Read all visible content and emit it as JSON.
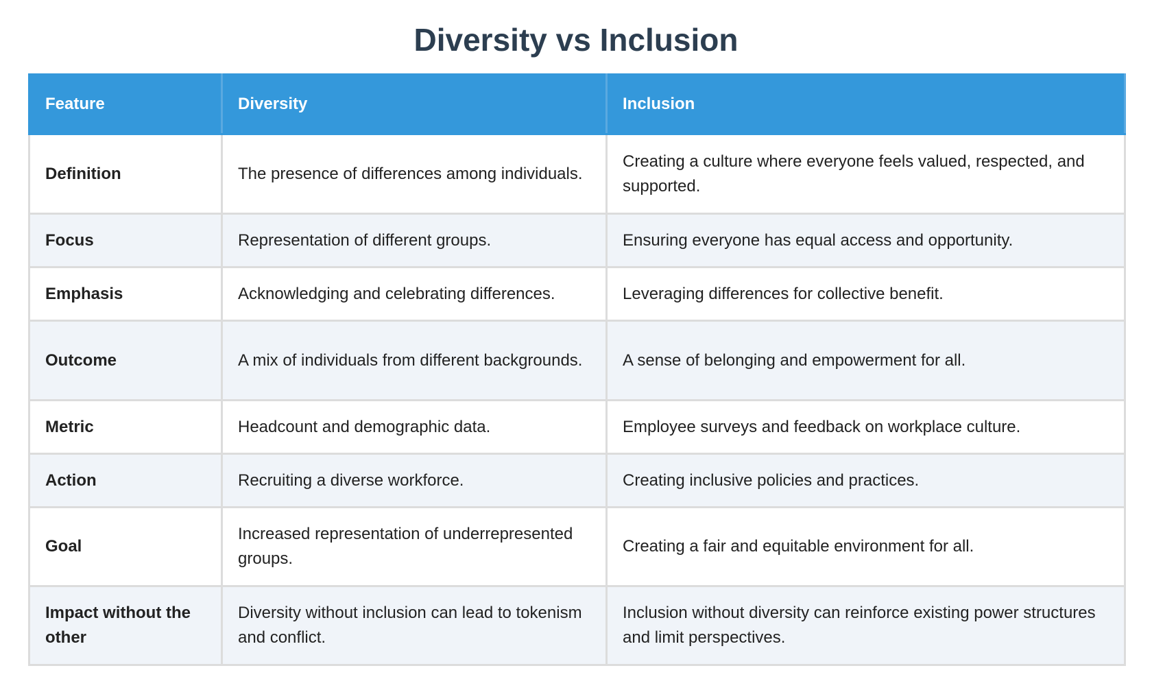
{
  "title": "Diversity vs Inclusion",
  "table": {
    "headers": [
      "Feature",
      "Diversity",
      "Inclusion"
    ],
    "rows": [
      [
        "Definition",
        "The presence of differences among individuals.",
        "Creating a culture where everyone feels valued, respected, and supported."
      ],
      [
        "Focus",
        "Representation of different groups.",
        "Ensuring everyone has equal access and opportunity."
      ],
      [
        "Emphasis",
        "Acknowledging and celebrating differences.",
        "Leveraging differences for collective benefit."
      ],
      [
        "Outcome",
        "A mix of individuals from different backgrounds.",
        "A sense of belonging and empowerment for all."
      ],
      [
        "Metric",
        "Headcount and demographic data.",
        "Employee surveys and feedback on workplace culture."
      ],
      [
        "Action",
        "Recruiting a diverse workforce.",
        "Creating inclusive policies and practices."
      ],
      [
        "Goal",
        "Increased representation of underrepresented groups.",
        "Creating a fair and equitable environment for all."
      ],
      [
        "Impact without the other",
        "Diversity without inclusion can lead to tokenism and conflict.",
        "Inclusion without diversity can reinforce existing power structures and limit perspectives."
      ]
    ]
  }
}
